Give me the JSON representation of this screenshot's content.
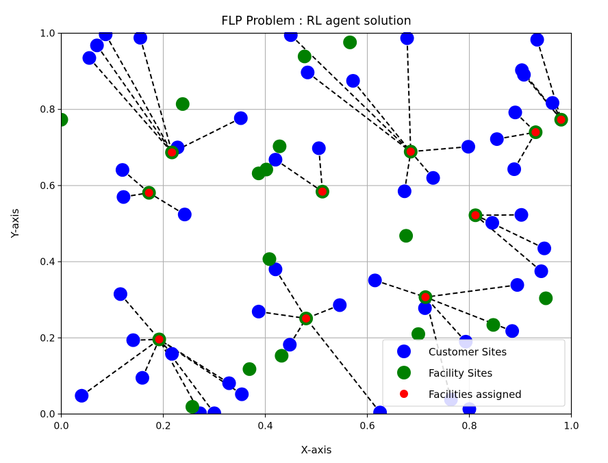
{
  "chart_data": {
    "type": "scatter",
    "title": "FLP Problem : RL agent solution",
    "xlabel": "X-axis",
    "ylabel": "Y-axis",
    "xlim": [
      0.0,
      1.0
    ],
    "ylim": [
      0.0,
      1.0
    ],
    "xticks": [
      "0.0",
      "0.2",
      "0.4",
      "0.6",
      "0.8",
      "1.0"
    ],
    "yticks": [
      "0.0",
      "0.2",
      "0.4",
      "0.6",
      "0.8",
      "1.0"
    ],
    "grid": true,
    "legend_position": "bottom-right",
    "colors": {
      "customer": "#0000ff",
      "facility": "#008000",
      "assigned": "#ff0000",
      "link": "#000000",
      "grid": "#b0b0b0"
    },
    "series": [
      {
        "name": "Customer Sites",
        "points": [
          [
            0.055,
            0.935
          ],
          [
            0.07,
            0.968
          ],
          [
            0.087,
            0.997
          ],
          [
            0.155,
            0.988
          ],
          [
            0.228,
            0.7
          ],
          [
            0.352,
            0.777
          ],
          [
            0.12,
            0.641
          ],
          [
            0.122,
            0.57
          ],
          [
            0.242,
            0.524
          ],
          [
            0.45,
            0.995
          ],
          [
            0.483,
            0.897
          ],
          [
            0.572,
            0.875
          ],
          [
            0.678,
            0.987
          ],
          [
            0.42,
            0.668
          ],
          [
            0.505,
            0.698
          ],
          [
            0.673,
            0.585
          ],
          [
            0.729,
            0.62
          ],
          [
            0.798,
            0.702
          ],
          [
            0.933,
            0.983
          ],
          [
            0.903,
            0.903
          ],
          [
            0.907,
            0.891
          ],
          [
            0.963,
            0.817
          ],
          [
            0.89,
            0.792
          ],
          [
            0.854,
            0.722
          ],
          [
            0.888,
            0.643
          ],
          [
            0.902,
            0.523
          ],
          [
            0.845,
            0.502
          ],
          [
            0.947,
            0.435
          ],
          [
            0.941,
            0.375
          ],
          [
            0.894,
            0.339
          ],
          [
            0.615,
            0.351
          ],
          [
            0.713,
            0.278
          ],
          [
            0.793,
            0.19
          ],
          [
            0.884,
            0.218
          ],
          [
            0.764,
            0.038
          ],
          [
            0.8,
            0.013
          ],
          [
            0.625,
            0.004
          ],
          [
            0.42,
            0.38
          ],
          [
            0.387,
            0.269
          ],
          [
            0.546,
            0.286
          ],
          [
            0.448,
            0.182
          ],
          [
            0.116,
            0.315
          ],
          [
            0.141,
            0.194
          ],
          [
            0.159,
            0.095
          ],
          [
            0.217,
            0.158
          ],
          [
            0.04,
            0.048
          ],
          [
            0.329,
            0.081
          ],
          [
            0.354,
            0.052
          ],
          [
            0.272,
            0.002
          ],
          [
            0.3,
            0.002
          ]
        ]
      },
      {
        "name": "Facility Sites",
        "points": [
          [
            0.0,
            0.773
          ],
          [
            0.238,
            0.814
          ],
          [
            0.217,
            0.687
          ],
          [
            0.172,
            0.581
          ],
          [
            0.428,
            0.703
          ],
          [
            0.402,
            0.642
          ],
          [
            0.387,
            0.632
          ],
          [
            0.512,
            0.584
          ],
          [
            0.477,
            0.939
          ],
          [
            0.566,
            0.976
          ],
          [
            0.685,
            0.689
          ],
          [
            0.93,
            0.74
          ],
          [
            0.98,
            0.773
          ],
          [
            0.676,
            0.468
          ],
          [
            0.812,
            0.522
          ],
          [
            0.714,
            0.307
          ],
          [
            0.95,
            0.304
          ],
          [
            0.847,
            0.234
          ],
          [
            0.7,
            0.21
          ],
          [
            0.408,
            0.407
          ],
          [
            0.48,
            0.251
          ],
          [
            0.432,
            0.153
          ],
          [
            0.369,
            0.118
          ],
          [
            0.192,
            0.196
          ],
          [
            0.257,
            0.019
          ]
        ]
      },
      {
        "name": "Facilities assigned",
        "points": [
          [
            0.217,
            0.687
          ],
          [
            0.172,
            0.581
          ],
          [
            0.512,
            0.584
          ],
          [
            0.685,
            0.689
          ],
          [
            0.93,
            0.74
          ],
          [
            0.98,
            0.773
          ],
          [
            0.812,
            0.522
          ],
          [
            0.714,
            0.307
          ],
          [
            0.48,
            0.251
          ],
          [
            0.192,
            0.196
          ]
        ]
      }
    ],
    "assignments": [
      {
        "facility": [
          0.217,
          0.687
        ],
        "customers": [
          [
            0.055,
            0.935
          ],
          [
            0.07,
            0.968
          ],
          [
            0.087,
            0.997
          ],
          [
            0.155,
            0.988
          ],
          [
            0.228,
            0.7
          ],
          [
            0.352,
            0.777
          ]
        ]
      },
      {
        "facility": [
          0.172,
          0.581
        ],
        "customers": [
          [
            0.12,
            0.641
          ],
          [
            0.122,
            0.57
          ],
          [
            0.242,
            0.524
          ]
        ]
      },
      {
        "facility": [
          0.512,
          0.584
        ],
        "customers": [
          [
            0.42,
            0.668
          ],
          [
            0.505,
            0.698
          ]
        ]
      },
      {
        "facility": [
          0.685,
          0.689
        ],
        "customers": [
          [
            0.45,
            0.995
          ],
          [
            0.483,
            0.897
          ],
          [
            0.572,
            0.875
          ],
          [
            0.678,
            0.987
          ],
          [
            0.673,
            0.585
          ],
          [
            0.729,
            0.62
          ],
          [
            0.798,
            0.702
          ]
        ]
      },
      {
        "facility": [
          0.98,
          0.773
        ],
        "customers": [
          [
            0.933,
            0.983
          ],
          [
            0.903,
            0.903
          ],
          [
            0.907,
            0.891
          ],
          [
            0.963,
            0.817
          ]
        ]
      },
      {
        "facility": [
          0.93,
          0.74
        ],
        "customers": [
          [
            0.89,
            0.792
          ],
          [
            0.854,
            0.722
          ],
          [
            0.888,
            0.643
          ]
        ]
      },
      {
        "facility": [
          0.812,
          0.522
        ],
        "customers": [
          [
            0.902,
            0.523
          ],
          [
            0.845,
            0.502
          ],
          [
            0.947,
            0.435
          ],
          [
            0.941,
            0.375
          ]
        ]
      },
      {
        "facility": [
          0.714,
          0.307
        ],
        "customers": [
          [
            0.615,
            0.351
          ],
          [
            0.713,
            0.278
          ],
          [
            0.793,
            0.19
          ],
          [
            0.884,
            0.218
          ],
          [
            0.894,
            0.339
          ],
          [
            0.764,
            0.038
          ]
        ]
      },
      {
        "facility": [
          0.48,
          0.251
        ],
        "customers": [
          [
            0.42,
            0.38
          ],
          [
            0.387,
            0.269
          ],
          [
            0.546,
            0.286
          ],
          [
            0.448,
            0.182
          ],
          [
            0.625,
            0.004
          ]
        ]
      },
      {
        "facility": [
          0.192,
          0.196
        ],
        "customers": [
          [
            0.116,
            0.315
          ],
          [
            0.141,
            0.194
          ],
          [
            0.159,
            0.095
          ],
          [
            0.217,
            0.158
          ],
          [
            0.04,
            0.048
          ],
          [
            0.329,
            0.081
          ],
          [
            0.354,
            0.052
          ],
          [
            0.272,
            0.002
          ],
          [
            0.3,
            0.002
          ]
        ]
      }
    ]
  }
}
